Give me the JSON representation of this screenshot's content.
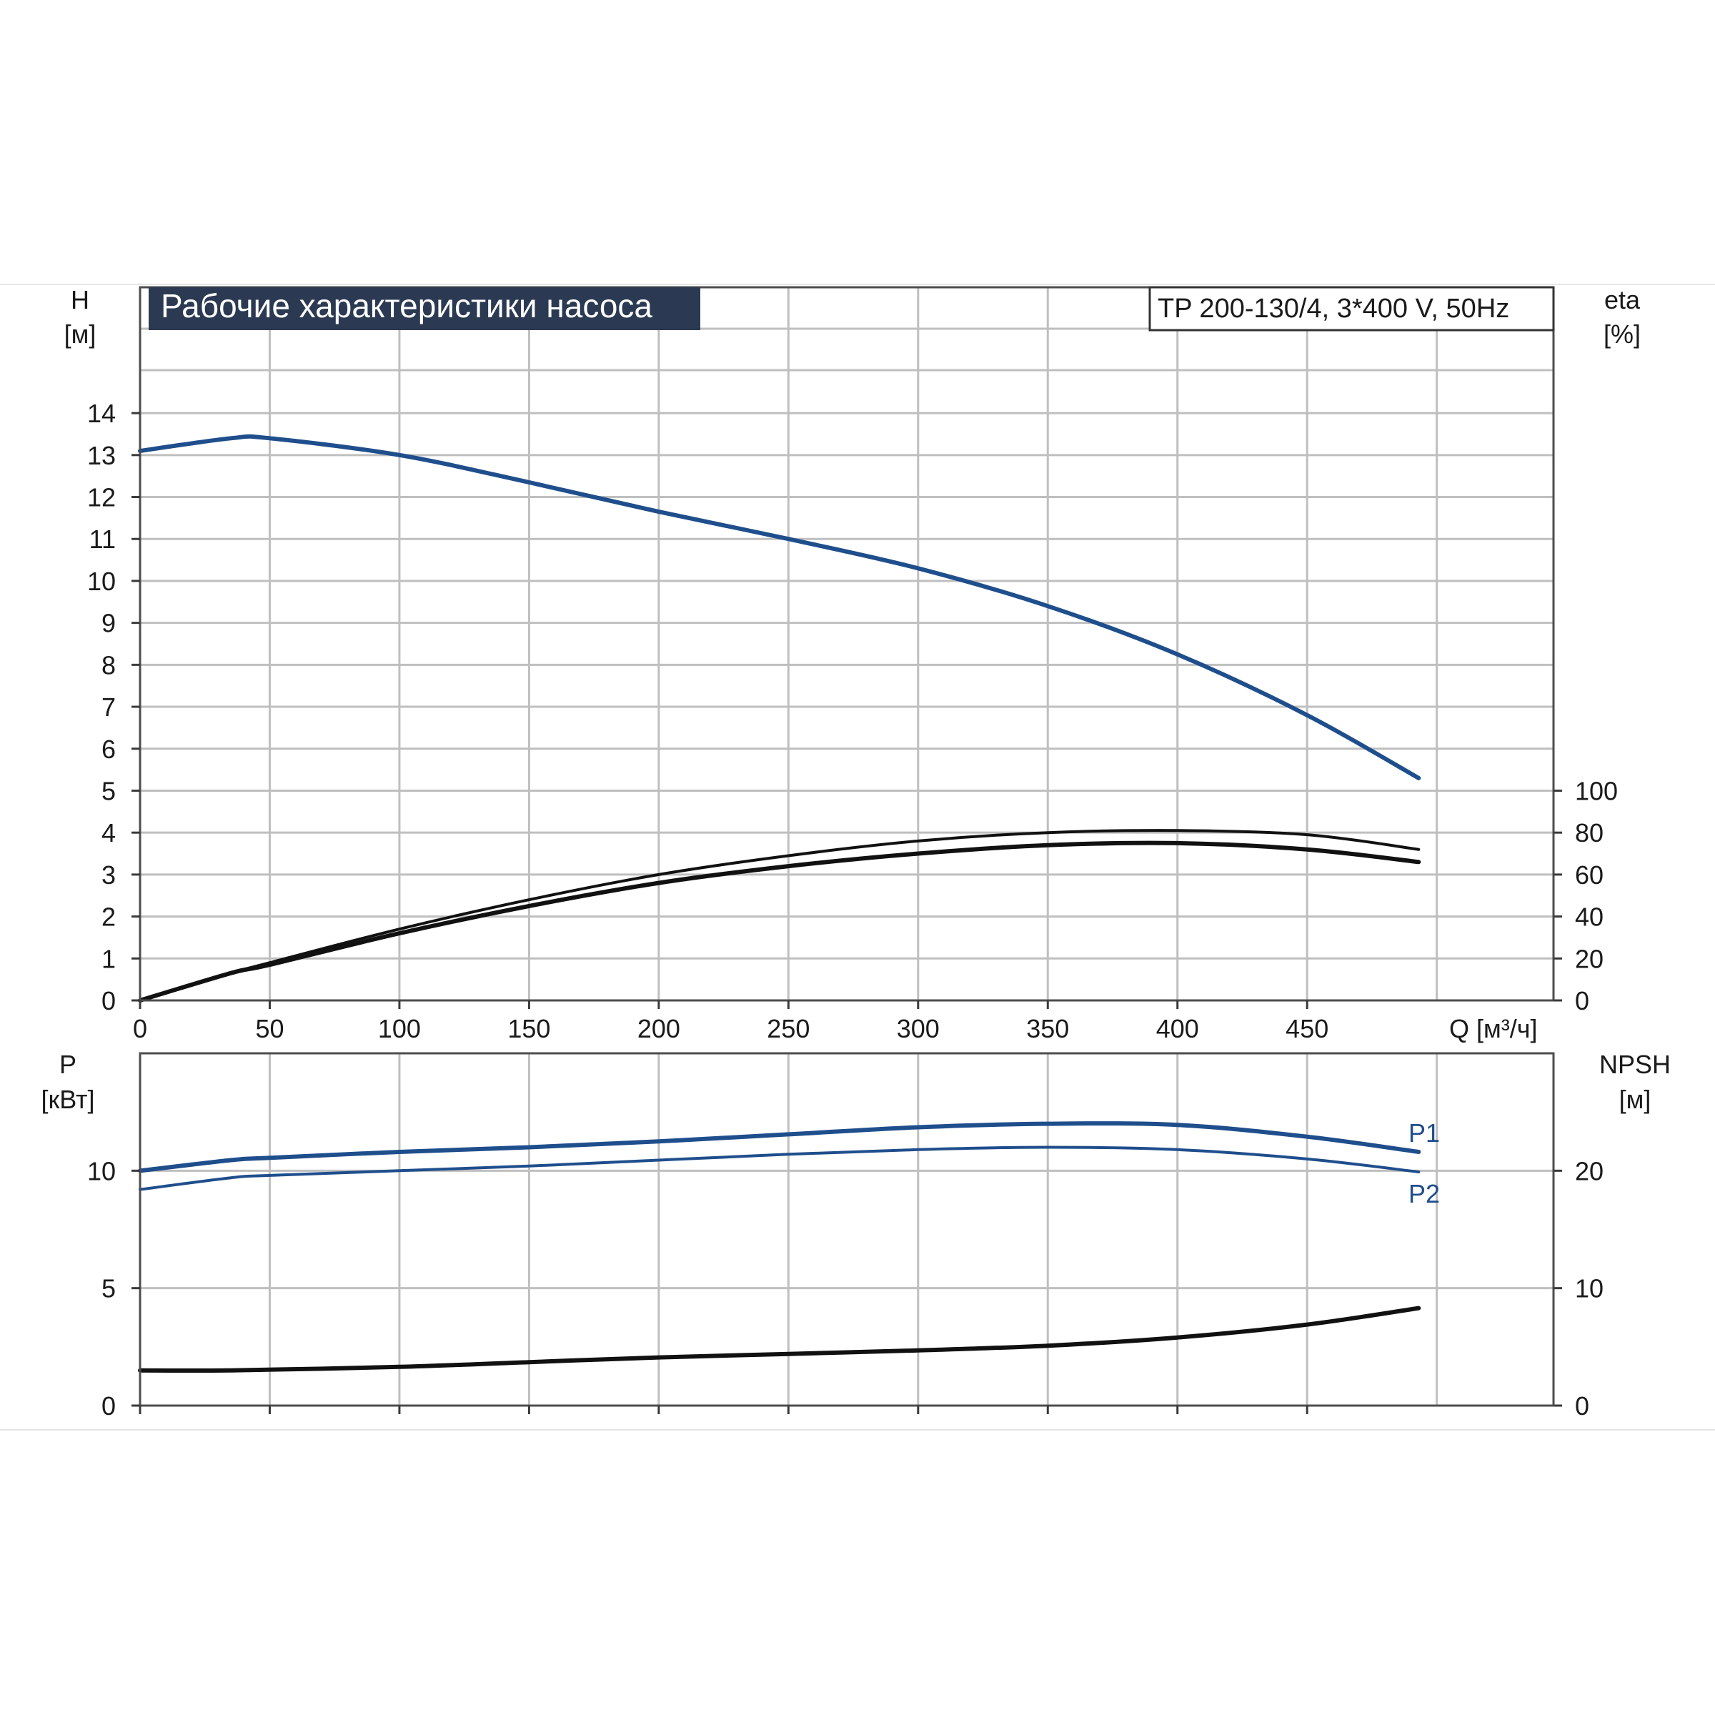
{
  "title": "Рабочие характеристики насоса",
  "model": "TP 200-130/4, 3*400 V, 50Hz",
  "colors": {
    "blue": "#1f4e8c",
    "black": "#111111",
    "title_bg": "#2b3a52",
    "title_fg": "#ffffff",
    "grid": "#bfbfbf"
  },
  "chart_data": [
    {
      "type": "line",
      "name": "head-efficiency",
      "x_axis": {
        "label": "Q [м³/ч]",
        "range": [
          0,
          545
        ],
        "ticks": [
          0,
          50,
          100,
          150,
          200,
          250,
          300,
          350,
          400,
          450
        ]
      },
      "y_left": {
        "label_top": "H",
        "label_unit": "[м]",
        "range": [
          0,
          17
        ],
        "ticks": [
          0,
          1,
          2,
          3,
          4,
          5,
          6,
          7,
          8,
          9,
          10,
          11,
          12,
          13,
          14
        ]
      },
      "y_right": {
        "label_top": "eta",
        "label_unit": "[%]",
        "range": [
          0,
          340
        ],
        "ticks": [
          0,
          20,
          40,
          60,
          80,
          100
        ]
      },
      "grid": true,
      "series": [
        {
          "axis": "left",
          "color": "blue",
          "x": [
            0,
            35,
            50,
            100,
            150,
            200,
            250,
            300,
            350,
            400,
            450,
            493
          ],
          "y": [
            13.1,
            13.4,
            13.4,
            13.0,
            12.35,
            11.65,
            11.0,
            10.3,
            9.4,
            8.25,
            6.8,
            5.3
          ]
        },
        {
          "axis": "right",
          "color": "black",
          "x": [
            0,
            35,
            50,
            100,
            150,
            200,
            250,
            300,
            350,
            400,
            450,
            493
          ],
          "y": [
            0,
            13,
            18,
            34,
            48,
            60,
            69,
            76,
            80,
            81,
            79,
            72
          ]
        },
        {
          "axis": "right",
          "color": "black",
          "x": [
            0,
            35,
            50,
            100,
            150,
            200,
            250,
            300,
            350,
            400,
            450,
            493
          ],
          "y": [
            0,
            13,
            17,
            32,
            45,
            56,
            64,
            70,
            74,
            75,
            72,
            66
          ]
        }
      ]
    },
    {
      "type": "line",
      "name": "power-npsh",
      "x_axis": {
        "range": [
          0,
          545
        ],
        "ticks": [
          0,
          50,
          100,
          150,
          200,
          250,
          300,
          350,
          400,
          450
        ]
      },
      "y_left": {
        "label_top": "P",
        "label_unit": "[кВт]",
        "range": [
          0,
          15
        ],
        "ticks": [
          0,
          5,
          10
        ]
      },
      "y_right": {
        "label_top": "NPSH",
        "label_unit": "[м]",
        "range": [
          0,
          30
        ],
        "ticks": [
          0,
          10,
          20
        ]
      },
      "grid": true,
      "series": [
        {
          "name": "P1",
          "axis": "left",
          "color": "blue",
          "x": [
            0,
            35,
            50,
            100,
            150,
            200,
            250,
            300,
            350,
            400,
            450,
            493
          ],
          "y": [
            10.0,
            10.45,
            10.55,
            10.8,
            11.0,
            11.25,
            11.55,
            11.85,
            12.0,
            11.95,
            11.45,
            10.8
          ]
        },
        {
          "name": "P2",
          "axis": "left",
          "color": "blue",
          "x": [
            0,
            35,
            50,
            100,
            150,
            200,
            250,
            300,
            350,
            400,
            450,
            493
          ],
          "y": [
            9.2,
            9.7,
            9.8,
            10.0,
            10.2,
            10.45,
            10.7,
            10.9,
            11.0,
            10.9,
            10.5,
            9.95
          ]
        },
        {
          "axis": "right",
          "color": "black",
          "x": [
            0,
            35,
            100,
            150,
            200,
            250,
            300,
            350,
            400,
            450,
            493
          ],
          "y": [
            3.0,
            3.0,
            3.3,
            3.7,
            4.1,
            4.4,
            4.7,
            5.1,
            5.8,
            6.9,
            8.3
          ]
        }
      ]
    }
  ]
}
